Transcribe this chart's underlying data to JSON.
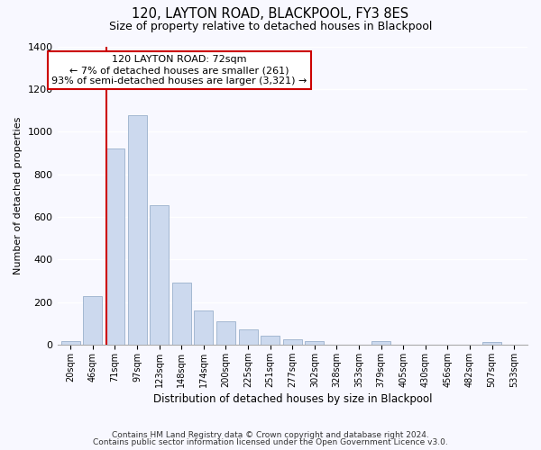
{
  "title": "120, LAYTON ROAD, BLACKPOOL, FY3 8ES",
  "subtitle": "Size of property relative to detached houses in Blackpool",
  "xlabel": "Distribution of detached houses by size in Blackpool",
  "ylabel": "Number of detached properties",
  "bar_color": "#ccd9ee",
  "bar_edge_color": "#9ab0cc",
  "categories": [
    "20sqm",
    "46sqm",
    "71sqm",
    "97sqm",
    "123sqm",
    "148sqm",
    "174sqm",
    "200sqm",
    "225sqm",
    "251sqm",
    "277sqm",
    "302sqm",
    "328sqm",
    "353sqm",
    "379sqm",
    "405sqm",
    "430sqm",
    "456sqm",
    "482sqm",
    "507sqm",
    "533sqm"
  ],
  "values": [
    15,
    228,
    920,
    1075,
    655,
    290,
    160,
    108,
    72,
    42,
    25,
    18,
    0,
    0,
    18,
    0,
    0,
    0,
    0,
    12,
    0
  ],
  "ylim": [
    0,
    1400
  ],
  "yticks": [
    0,
    200,
    400,
    600,
    800,
    1000,
    1200,
    1400
  ],
  "property_line_bar_index": 2,
  "property_label": "120 LAYTON ROAD: 72sqm",
  "annotation_line1": "← 7% of detached houses are smaller (261)",
  "annotation_line2": "93% of semi-detached houses are larger (3,321) →",
  "annotation_box_color": "#ffffff",
  "annotation_box_edge_color": "#cc0000",
  "property_line_color": "#cc0000",
  "footer1": "Contains HM Land Registry data © Crown copyright and database right 2024.",
  "footer2": "Contains public sector information licensed under the Open Government Licence v3.0.",
  "background_color": "#f8f8ff"
}
